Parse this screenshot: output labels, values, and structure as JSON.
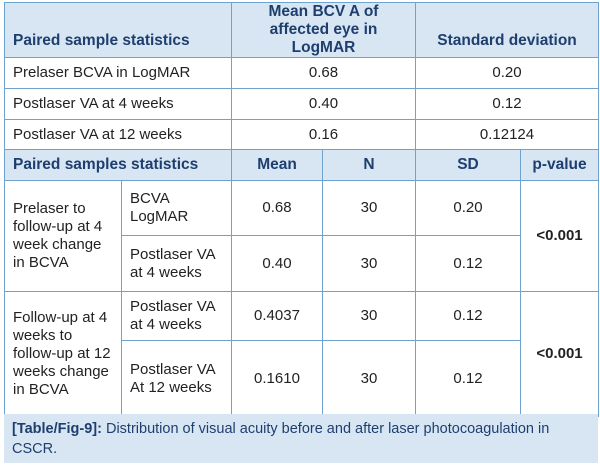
{
  "table1": {
    "headers": [
      "Paired sample statistics",
      "Mean BCV A of affected eye in LogMAR",
      "Standard deviation"
    ],
    "rows": [
      {
        "label": "Prelaser BCVA in LogMAR",
        "mean": "0.68",
        "sd": "0.20"
      },
      {
        "label": "Postlaser VA at 4 weeks",
        "mean": "0.40",
        "sd": "0.12"
      },
      {
        "label": "Postlaser VA at 12 weeks",
        "mean": "0.16",
        "sd": "0.12124"
      }
    ]
  },
  "table2": {
    "headers": [
      "Paired samples statistics",
      "Mean",
      "N",
      "SD",
      "p-value"
    ],
    "groups": [
      {
        "label": "Prelaser to follow-up at 4 week change in BCVA",
        "pvalue": "<0.001",
        "rows": [
          {
            "measure": "BCVA LogMAR",
            "mean": "0.68",
            "n": "30",
            "sd": "0.20"
          },
          {
            "measure": "Postlaser VA at 4 weeks",
            "mean": "0.40",
            "n": "30",
            "sd": "0.12"
          }
        ]
      },
      {
        "label": "Follow-up at 4 weeks to follow-up at 12 weeks change in BCVA",
        "pvalue": "<0.001",
        "rows": [
          {
            "measure": "Postlaser VA at 4 weeks",
            "mean": "0.4037",
            "n": "30",
            "sd": "0.12"
          },
          {
            "measure": "Postlaser VA At 12 weeks",
            "mean": "0.1610",
            "n": "30",
            "sd": "0.12"
          }
        ]
      }
    ]
  },
  "caption": {
    "label": "[Table/Fig-9]:",
    "text": "Distribution of visual acuity before and after laser photocoagulation in CSCR."
  },
  "colors": {
    "header_bg": "#d8e6f4",
    "header_text": "#1e3f6e",
    "border": "#6fa3cf"
  }
}
